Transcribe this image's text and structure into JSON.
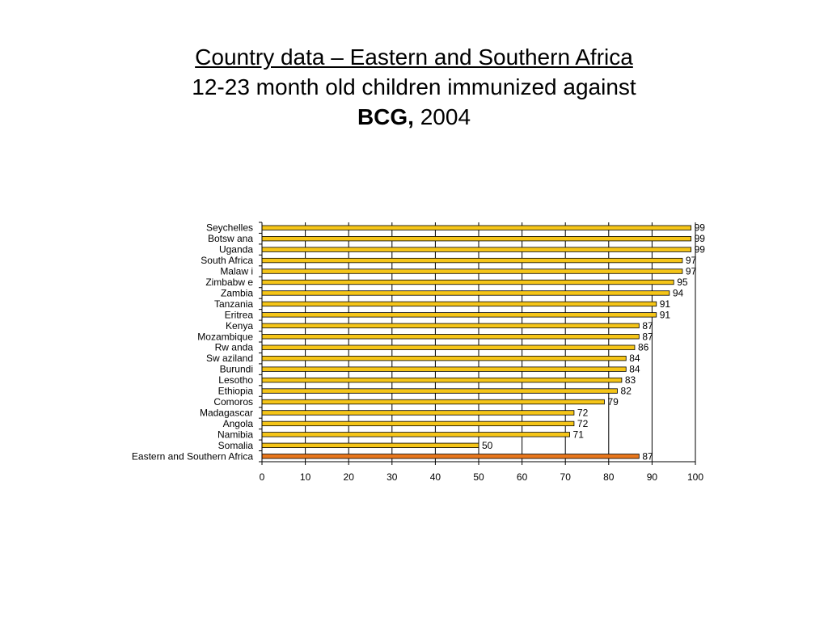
{
  "title": {
    "line1": "Country data – Eastern and Southern Africa",
    "line2": "12-23 month old children immunized against",
    "line3_bold": "BCG,",
    "line3_rest": " 2004"
  },
  "chart_data": {
    "type": "bar",
    "orientation": "horizontal",
    "categories": [
      "Seychelles",
      "Botsw ana",
      "Uganda",
      "South Africa",
      "Malaw i",
      "Zimbabw e",
      "Zambia",
      "Tanzania",
      "Eritrea",
      "Kenya",
      "Mozambique",
      "Rw anda",
      "Sw aziland",
      "Burundi",
      "Lesotho",
      "Ethiopia",
      "Comoros",
      "Madagascar",
      "Angola",
      "Namibia",
      "Somalia",
      "Eastern and Southern Africa"
    ],
    "values": [
      99,
      99,
      99,
      97,
      97,
      95,
      94,
      91,
      91,
      87,
      87,
      86,
      84,
      84,
      83,
      82,
      79,
      72,
      72,
      71,
      50,
      87
    ],
    "bar_colors": [
      "#F5C518",
      "#F5C518",
      "#F5C518",
      "#F5C518",
      "#F5C518",
      "#F5C518",
      "#F5C518",
      "#F5C518",
      "#F5C518",
      "#F5C518",
      "#F5C518",
      "#F5C518",
      "#F5C518",
      "#F5C518",
      "#F5C518",
      "#F5C518",
      "#F5C518",
      "#F5C518",
      "#F5C518",
      "#F5C518",
      "#F5C518",
      "#E8761B"
    ],
    "xlim": [
      0,
      100
    ],
    "x_ticks": [
      0,
      10,
      20,
      30,
      40,
      50,
      60,
      70,
      80,
      90,
      100
    ],
    "grid": "vertical",
    "data_labels": true,
    "legend": "none"
  }
}
